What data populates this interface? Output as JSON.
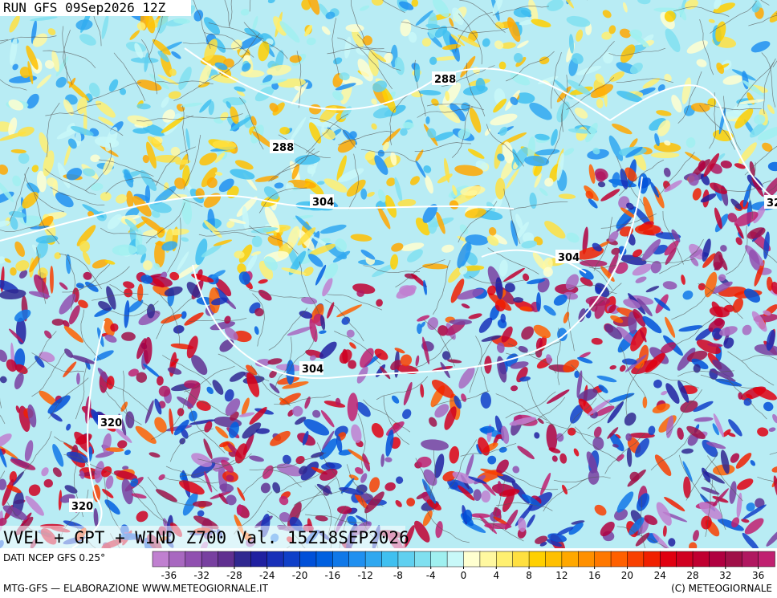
{
  "run_label": "RUN GFS 09Sep2026 12Z",
  "title": "VVEL + GPT + WIND Z700 Val. 15Z18SEP2026",
  "contour_labels": [
    "288",
    "288",
    "304",
    "304",
    "304",
    "320",
    "320",
    "32"
  ],
  "source": "DATI NCEP GFS 0.25°",
  "footer_left": "MTG-GFS — ELABORAZIONE WWW.METEOGIORNALE.IT",
  "footer_right": "(C) METEOGIORNALE",
  "colorbar": {
    "ticks": [
      -36,
      -32,
      -28,
      -24,
      -20,
      -16,
      -12,
      -8,
      -4,
      0,
      4,
      8,
      12,
      16,
      20,
      24,
      28,
      32,
      36
    ],
    "range": [
      -38,
      38
    ],
    "colors": [
      "#c080d0",
      "#a868c0",
      "#9050b0",
      "#7840a0",
      "#603090",
      "#302890",
      "#2020a0",
      "#1830b8",
      "#1040c8",
      "#0050d8",
      "#0060e0",
      "#1078e8",
      "#2090f0",
      "#30a8f0",
      "#40c0f0",
      "#60d0f0",
      "#80e0f0",
      "#a0f0f0",
      "#c8f8f8",
      "#ffffd0",
      "#fff8a0",
      "#fff070",
      "#ffe040",
      "#ffd000",
      "#ffc000",
      "#ffa800",
      "#ff9000",
      "#ff7800",
      "#ff6000",
      "#f84000",
      "#f02000",
      "#e00010",
      "#d00020",
      "#c00030",
      "#b00040",
      "#a01048",
      "#b01860",
      "#c02070"
    ]
  }
}
